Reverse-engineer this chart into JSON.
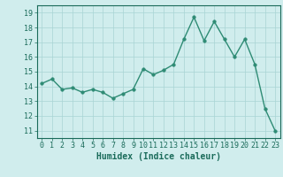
{
  "x": [
    0,
    1,
    2,
    3,
    4,
    5,
    6,
    7,
    8,
    9,
    10,
    11,
    12,
    13,
    14,
    15,
    16,
    17,
    18,
    19,
    20,
    21,
    22,
    23
  ],
  "y": [
    14.2,
    14.5,
    13.8,
    13.9,
    13.6,
    13.8,
    13.6,
    13.2,
    13.5,
    13.8,
    15.2,
    14.8,
    15.1,
    15.5,
    17.2,
    18.7,
    17.1,
    18.4,
    17.2,
    16.0,
    17.2,
    15.5,
    12.5,
    11.0
  ],
  "line_color": "#2e8b74",
  "marker_color": "#2e8b74",
  "bg_color": "#d0eded",
  "grid_color": "#a8d4d4",
  "xlabel": "Humidex (Indice chaleur)",
  "ylim": [
    10.5,
    19.5
  ],
  "xlim": [
    -0.5,
    23.5
  ],
  "yticks": [
    11,
    12,
    13,
    14,
    15,
    16,
    17,
    18,
    19
  ],
  "xticks": [
    0,
    1,
    2,
    3,
    4,
    5,
    6,
    7,
    8,
    9,
    10,
    11,
    12,
    13,
    14,
    15,
    16,
    17,
    18,
    19,
    20,
    21,
    22,
    23
  ],
  "tick_color": "#1a6b5a",
  "label_color": "#1a6b5a",
  "xlabel_fontsize": 7,
  "tick_fontsize": 6,
  "linewidth": 1.0,
  "markersize": 2.5
}
